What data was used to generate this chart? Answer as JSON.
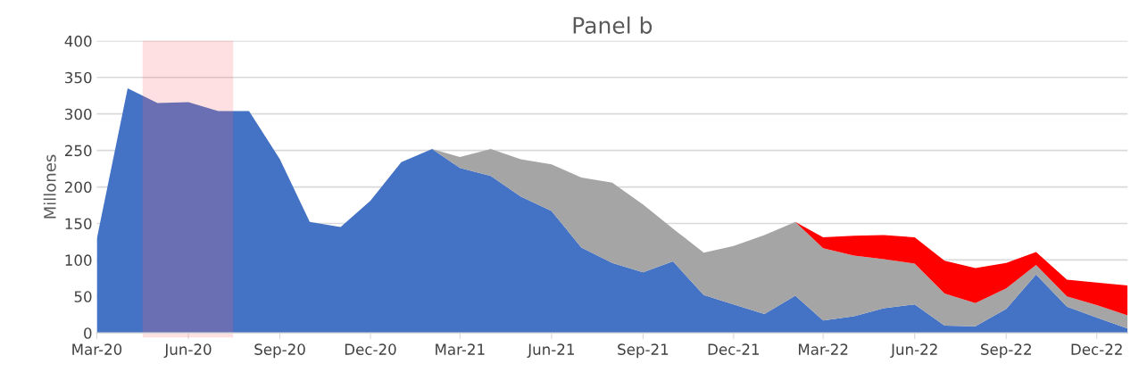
{
  "chart_data": {
    "type": "area",
    "title": "Panel b",
    "ylabel": "Millones",
    "stacked": true,
    "grid": "y",
    "x": [
      "2020-03",
      "2020-04",
      "2020-05",
      "2020-06",
      "2020-07",
      "2020-08",
      "2020-09",
      "2020-10",
      "2020-11",
      "2020-12",
      "2021-01",
      "2021-02",
      "2021-03",
      "2021-04",
      "2021-05",
      "2021-06",
      "2021-07",
      "2021-08",
      "2021-09",
      "2021-10",
      "2021-11",
      "2021-12",
      "2022-01",
      "2022-02",
      "2022-03",
      "2022-04",
      "2022-05",
      "2022-06",
      "2022-07",
      "2022-08",
      "2022-09",
      "2022-10",
      "2022-11",
      "2022-12",
      "2023-01"
    ],
    "series": [
      {
        "color": "#4472c4",
        "values": [
          129,
          335,
          315,
          316,
          304,
          304,
          238,
          152,
          145,
          181,
          234,
          252,
          226,
          215,
          187,
          167,
          117,
          96,
          83,
          98,
          52,
          39,
          26,
          51,
          17,
          23,
          34,
          39,
          10,
          9,
          33,
          80,
          36,
          21,
          6
        ]
      },
      {
        "color": "#a5a5a5",
        "values": [
          0,
          0,
          0,
          0,
          0,
          0,
          0,
          0,
          0,
          0,
          0,
          0,
          15,
          37,
          51,
          64,
          96,
          110,
          93,
          45,
          58,
          80,
          108,
          101,
          99,
          83,
          67,
          56,
          44,
          32,
          28,
          13,
          14,
          17,
          18
        ]
      },
      {
        "color": "#ff0000",
        "values": [
          0,
          0,
          0,
          0,
          0,
          0,
          0,
          0,
          0,
          0,
          0,
          0,
          0,
          0,
          0,
          0,
          0,
          0,
          0,
          0,
          0,
          0,
          0,
          0,
          15,
          27,
          33,
          36,
          45,
          48,
          35,
          18,
          23,
          31,
          41
        ]
      }
    ],
    "xlim": [
      "2020-03",
      "2023-01"
    ],
    "xticks": [
      {
        "value": "2020-03",
        "label": "Mar-20"
      },
      {
        "value": "2020-06",
        "label": "Jun-20"
      },
      {
        "value": "2020-09",
        "label": "Sep-20"
      },
      {
        "value": "2020-12",
        "label": "Dec-20"
      },
      {
        "value": "2021-03",
        "label": "Mar-21"
      },
      {
        "value": "2021-06",
        "label": "Jun-21"
      },
      {
        "value": "2021-09",
        "label": "Sep-21"
      },
      {
        "value": "2021-12",
        "label": "Dec-21"
      },
      {
        "value": "2022-03",
        "label": "Mar-22"
      },
      {
        "value": "2022-06",
        "label": "Jun-22"
      },
      {
        "value": "2022-09",
        "label": "Sep-22"
      },
      {
        "value": "2022-12",
        "label": "Dec-22"
      }
    ],
    "ylim": [
      0,
      400
    ],
    "yticks": [
      0,
      50,
      100,
      150,
      200,
      250,
      300,
      350,
      400
    ],
    "bands": [
      {
        "axis": "x",
        "from": "2020-04-16",
        "to": "2020-07-16",
        "color": "#ff6470"
      }
    ]
  }
}
